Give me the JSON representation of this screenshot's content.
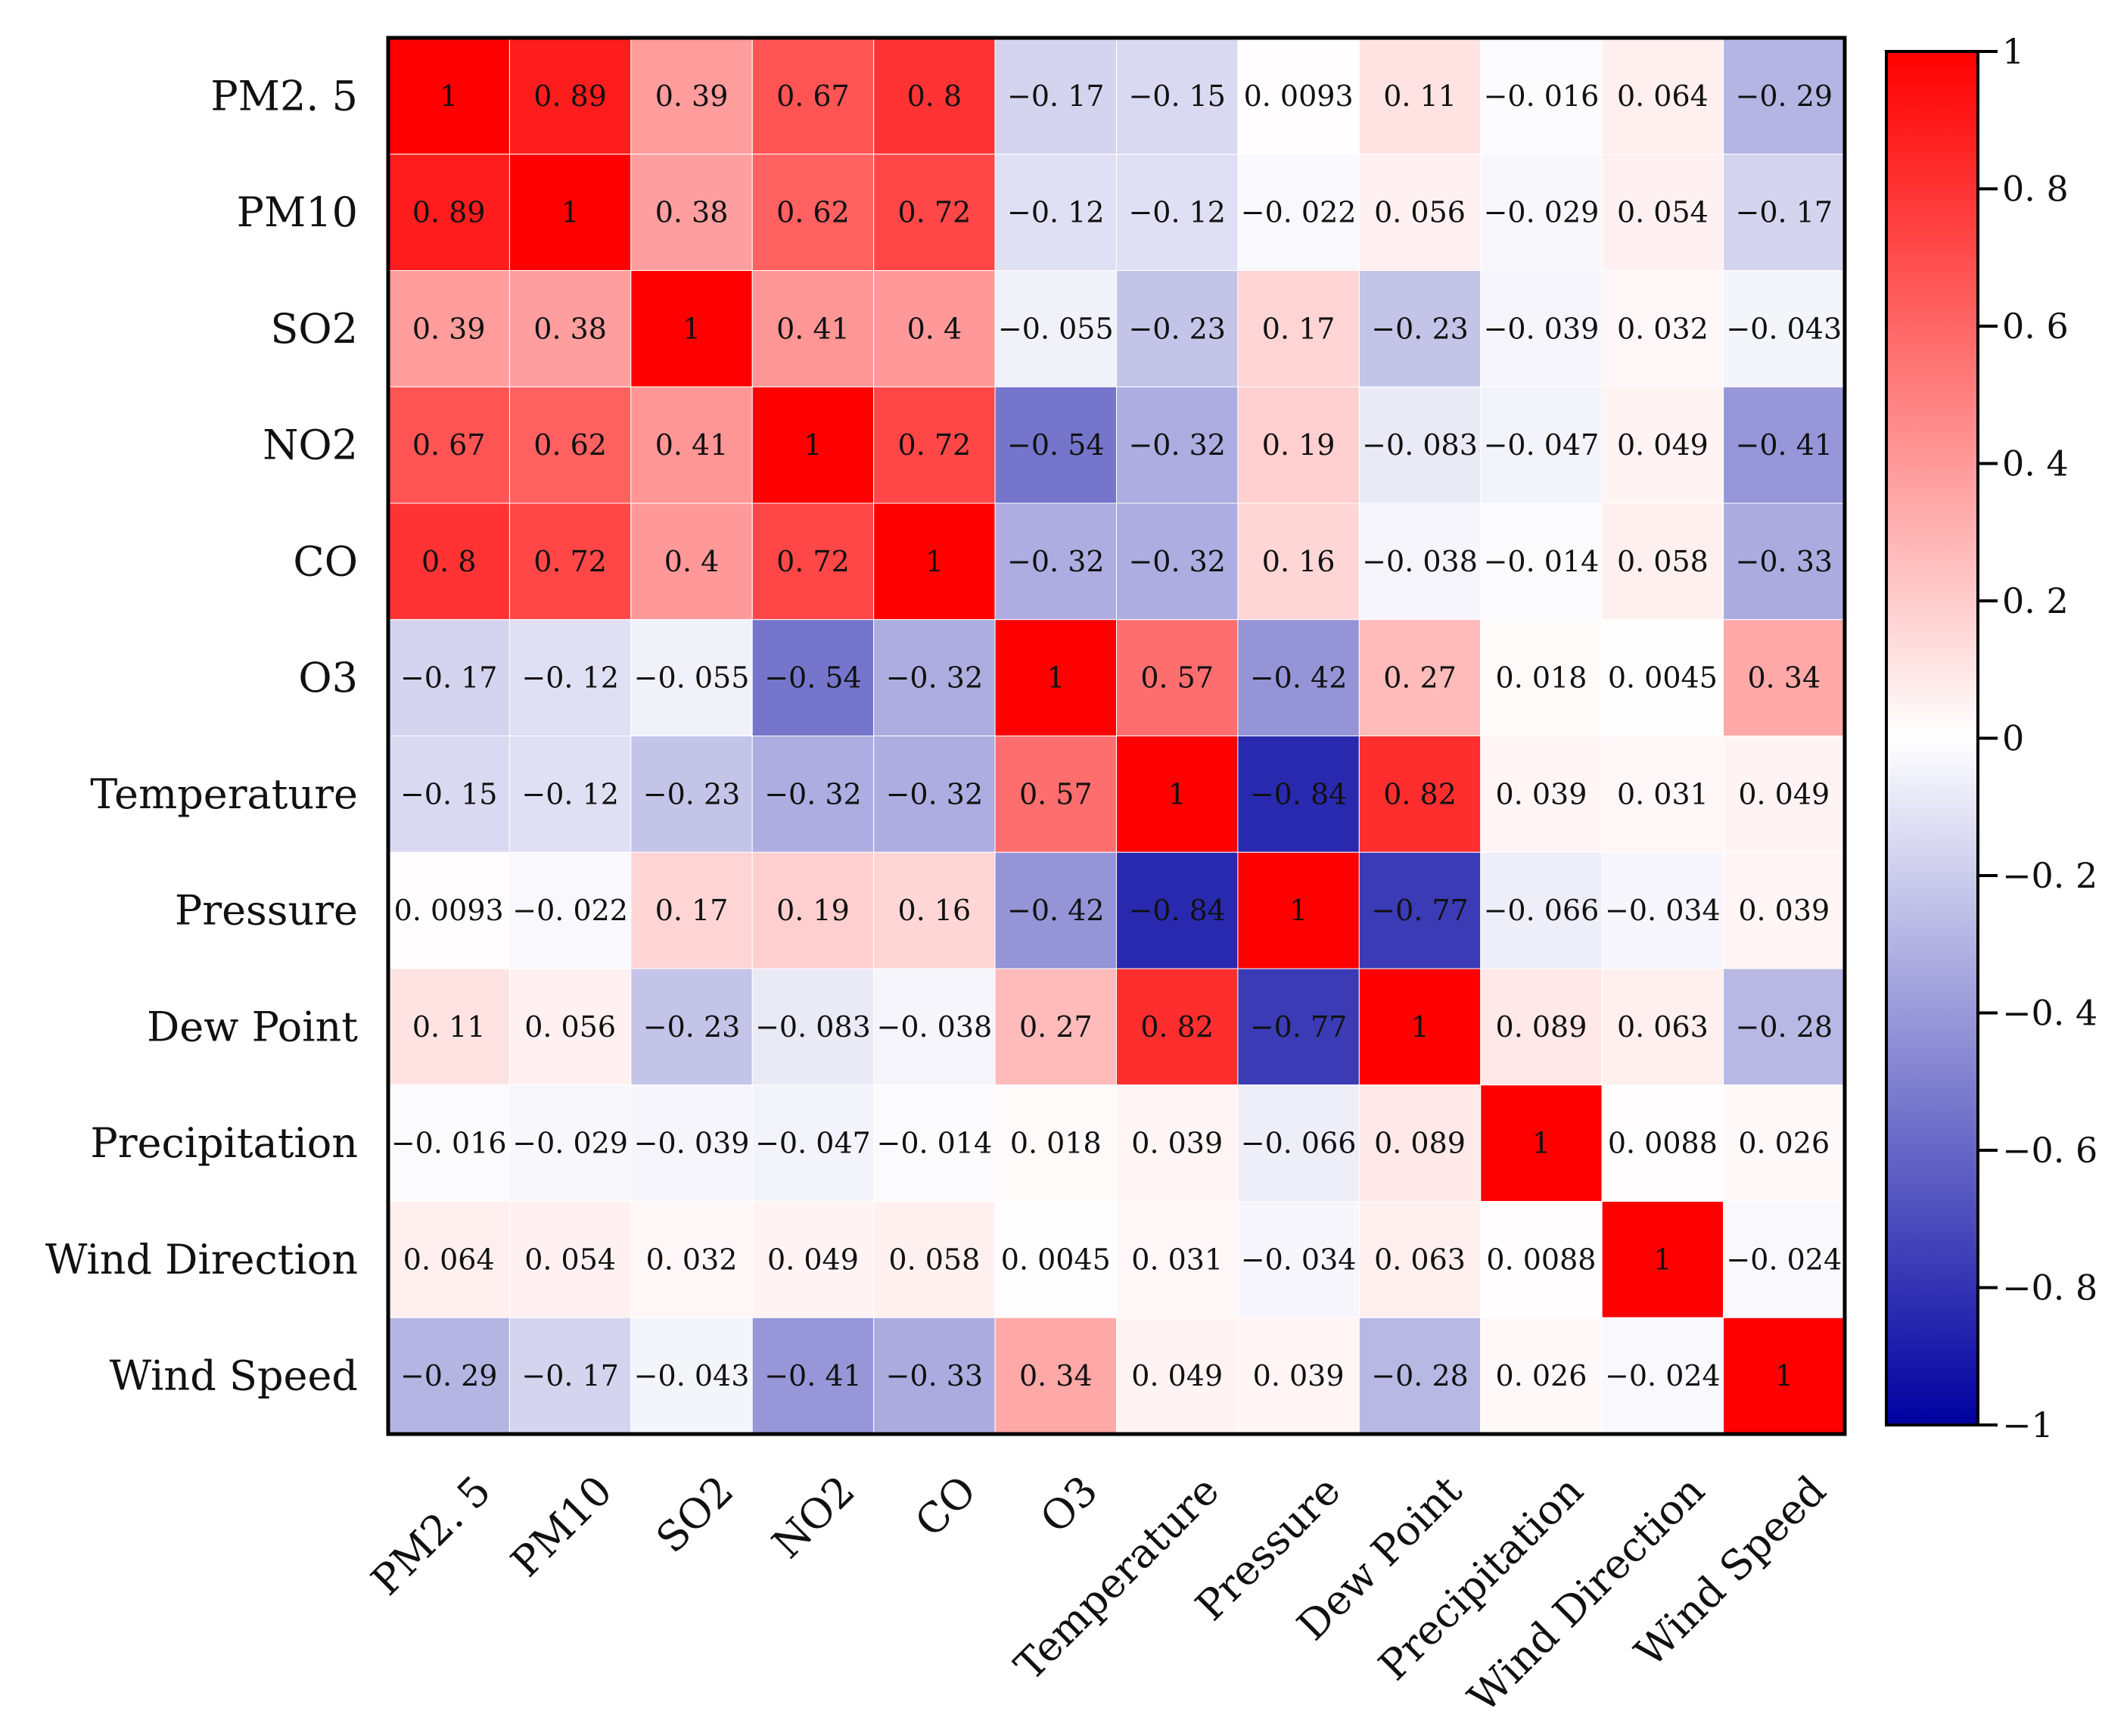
{
  "chart_data": {
    "type": "heatmap",
    "title": "",
    "xlabel": "",
    "ylabel": "",
    "variables": [
      "PM2.5",
      "PM10",
      "SO2",
      "NO2",
      "CO",
      "O3",
      "Temperature",
      "Pressure",
      "Dew Point",
      "Precipitation",
      "Wind Direction",
      "Wind Speed"
    ],
    "row_labels": [
      "PM2. 5",
      "PM10",
      "SO2",
      "NO2",
      "CO",
      "O3",
      "Temperature",
      "Pressure",
      "Dew Point",
      "Precipitation",
      "Wind Direction",
      "Wind Speed"
    ],
    "col_labels": [
      "PM2. 5",
      "PM10",
      "SO2",
      "NO2",
      "CO",
      "O3",
      "Temperature",
      "Pressure",
      "Dew Point",
      "Precipitation",
      "Wind Direction",
      "Wind Speed"
    ],
    "values": [
      [
        1,
        0.89,
        0.39,
        0.67,
        0.8,
        -0.17,
        -0.15,
        0.0093,
        0.11,
        -0.016,
        0.064,
        -0.29
      ],
      [
        0.89,
        1,
        0.38,
        0.62,
        0.72,
        -0.12,
        -0.12,
        -0.022,
        0.056,
        -0.029,
        0.054,
        -0.17
      ],
      [
        0.39,
        0.38,
        1,
        0.41,
        0.4,
        -0.055,
        -0.23,
        0.17,
        -0.23,
        -0.039,
        0.032,
        -0.043
      ],
      [
        0.67,
        0.62,
        0.41,
        1,
        0.72,
        -0.54,
        -0.32,
        0.19,
        -0.083,
        -0.047,
        0.049,
        -0.41
      ],
      [
        0.8,
        0.72,
        0.4,
        0.72,
        1,
        -0.32,
        -0.32,
        0.16,
        -0.038,
        -0.014,
        0.058,
        -0.33
      ],
      [
        -0.17,
        -0.12,
        -0.055,
        -0.54,
        -0.32,
        1,
        0.57,
        -0.42,
        0.27,
        0.018,
        0.0045,
        0.34
      ],
      [
        -0.15,
        -0.12,
        -0.23,
        -0.32,
        -0.32,
        0.57,
        1,
        -0.84,
        0.82,
        0.039,
        0.031,
        0.049
      ],
      [
        0.0093,
        -0.022,
        0.17,
        0.19,
        0.16,
        -0.42,
        -0.84,
        1,
        -0.77,
        -0.066,
        -0.034,
        0.039
      ],
      [
        0.11,
        0.056,
        -0.23,
        -0.083,
        -0.038,
        0.27,
        0.82,
        -0.77,
        1,
        0.089,
        0.063,
        -0.28
      ],
      [
        -0.016,
        -0.029,
        -0.039,
        -0.047,
        -0.014,
        0.018,
        0.039,
        -0.066,
        0.089,
        1,
        0.0088,
        0.026
      ],
      [
        0.064,
        0.054,
        0.032,
        0.049,
        0.058,
        0.0045,
        0.031,
        -0.034,
        0.063,
        0.0088,
        1,
        -0.024
      ],
      [
        -0.29,
        -0.17,
        -0.043,
        -0.41,
        -0.33,
        0.34,
        0.049,
        0.039,
        -0.28,
        0.026,
        -0.024,
        1
      ]
    ],
    "cell_labels": [
      [
        "1",
        "0. 89",
        "0. 39",
        "0. 67",
        "0. 8",
        "−0. 17",
        "−0. 15",
        "0. 0093",
        "0. 11",
        "−0. 016",
        "0. 064",
        "−0. 29"
      ],
      [
        "0. 89",
        "1",
        "0. 38",
        "0. 62",
        "0. 72",
        "−0. 12",
        "−0. 12",
        "−0. 022",
        "0. 056",
        "−0. 029",
        "0. 054",
        "−0. 17"
      ],
      [
        "0. 39",
        "0. 38",
        "1",
        "0. 41",
        "0. 4",
        "−0. 055",
        "−0. 23",
        "0. 17",
        "−0. 23",
        "−0. 039",
        "0. 032",
        "−0. 043"
      ],
      [
        "0. 67",
        "0. 62",
        "0. 41",
        "1",
        "0. 72",
        "−0. 54",
        "−0. 32",
        "0. 19",
        "−0. 083",
        "−0. 047",
        "0. 049",
        "−0. 41"
      ],
      [
        "0. 8",
        "0. 72",
        "0. 4",
        "0. 72",
        "1",
        "−0. 32",
        "−0. 32",
        "0. 16",
        "−0. 038",
        "−0. 014",
        "0. 058",
        "−0. 33"
      ],
      [
        "−0. 17",
        "−0. 12",
        "−0. 055",
        "−0. 54",
        "−0. 32",
        "1",
        "0. 57",
        "−0. 42",
        "0. 27",
        "0. 018",
        "0. 0045",
        "0. 34"
      ],
      [
        "−0. 15",
        "−0. 12",
        "−0. 23",
        "−0. 32",
        "−0. 32",
        "0. 57",
        "1",
        "−0. 84",
        "0. 82",
        "0. 039",
        "0. 031",
        "0. 049"
      ],
      [
        "0. 0093",
        "−0. 022",
        "0. 17",
        "0. 19",
        "0. 16",
        "−0. 42",
        "−0. 84",
        "1",
        "−0. 77",
        "−0. 066",
        "−0. 034",
        "0. 039"
      ],
      [
        "0. 11",
        "0. 056",
        "−0. 23",
        "−0. 083",
        "−0. 038",
        "0. 27",
        "0. 82",
        "−0. 77",
        "1",
        "0. 089",
        "0. 063",
        "−0. 28"
      ],
      [
        "−0. 016",
        "−0. 029",
        "−0. 039",
        "−0. 047",
        "−0. 014",
        "0. 018",
        "0. 039",
        "−0. 066",
        "0. 089",
        "1",
        "0. 0088",
        "0. 026"
      ],
      [
        "0. 064",
        "0. 054",
        "0. 032",
        "0. 049",
        "0. 058",
        "0. 0045",
        "0. 031",
        "−0. 034",
        "0. 063",
        "0. 0088",
        "1",
        "−0. 024"
      ],
      [
        "−0. 29",
        "−0. 17",
        "−0. 043",
        "−0. 41",
        "−0. 33",
        "0. 34",
        "0. 049",
        "0. 039",
        "−0. 28",
        "0. 026",
        "−0. 024",
        "1"
      ]
    ],
    "colorbar": {
      "range": [
        -1,
        1
      ],
      "ticks": [
        1,
        0.8,
        0.6,
        0.4,
        0.2,
        0,
        -0.2,
        -0.4,
        -0.6,
        -0.8,
        -1
      ],
      "tick_labels": [
        "1",
        "0. 8",
        "0. 6",
        "0. 4",
        "0. 2",
        "0",
        "−0. 2",
        "−0. 4",
        "−0. 6",
        "−0. 8",
        "−1"
      ],
      "colors": {
        "low": "#0000a0",
        "mid": "#ffffff",
        "high": "#ff0000"
      },
      "position": "right"
    },
    "grid": true
  }
}
